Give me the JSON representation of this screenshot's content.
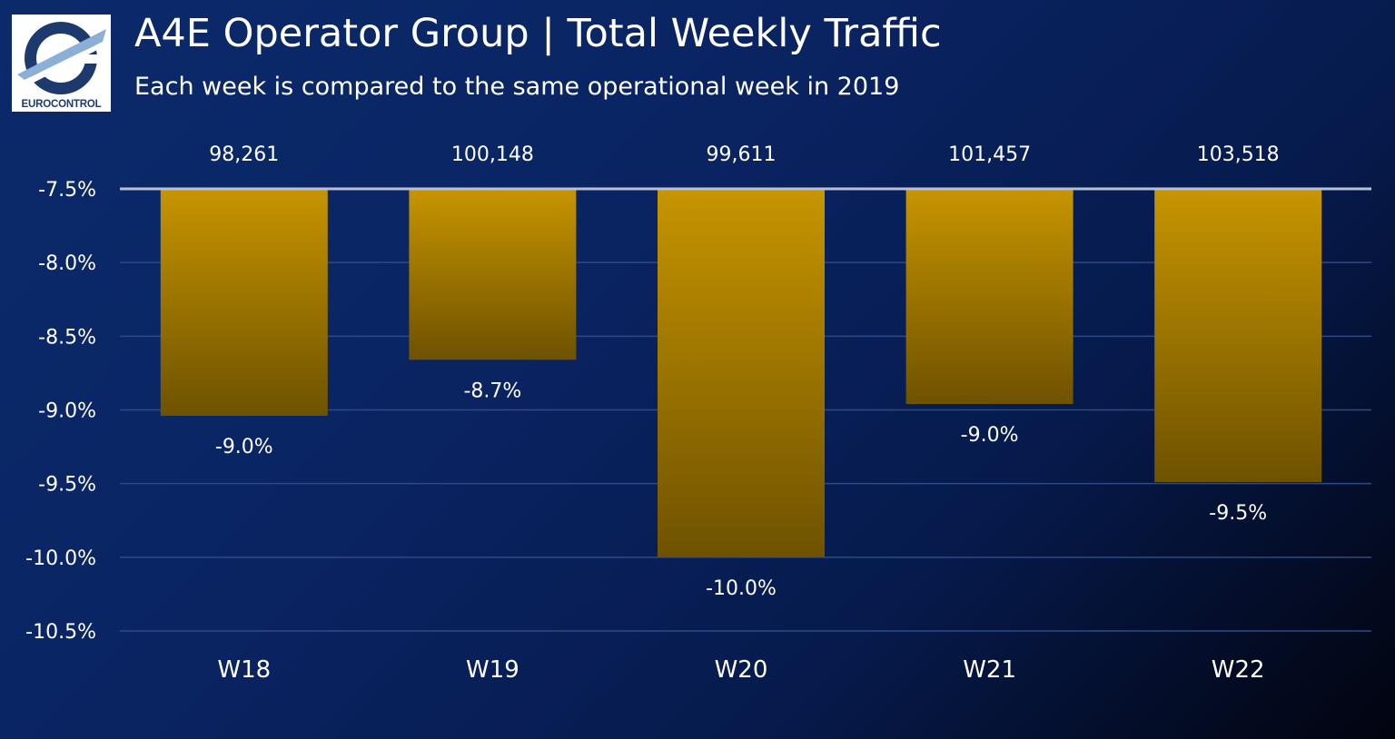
{
  "logo": {
    "text": "EUROCONTROL",
    "icon": "eurocontrol-logo-icon"
  },
  "header": {
    "title": "A4E Operator Group | Total Weekly Traffic",
    "subtitle": "Each week is compared to the same operational week in 2019"
  },
  "colors": {
    "background_top": "#0b2a6b",
    "background_bottom": "#02040f",
    "bar_top": "#c79500",
    "bar_bottom": "#6e5200",
    "gridline": "#2e4a86",
    "baseline": "#b7c0d4"
  },
  "chart_data": {
    "type": "bar",
    "categories": [
      "W18",
      "W19",
      "W20",
      "W21",
      "W22"
    ],
    "values": [
      -9.04,
      -8.66,
      -10.0,
      -8.96,
      -9.49
    ],
    "data_labels": [
      "-9.0%",
      "-8.7%",
      "-10.0%",
      "-9.0%",
      "-9.5%"
    ],
    "top_labels": [
      "98,261",
      "100,148",
      "99,611",
      "101,457",
      "103,518"
    ],
    "yticks": [
      -7.5,
      -8.0,
      -8.5,
      -9.0,
      -9.5,
      -10.0,
      -10.5
    ],
    "ytick_labels": [
      "-7.5%",
      "-8.0%",
      "-8.5%",
      "-9.0%",
      "-9.5%",
      "-10.0%",
      "-10.5%"
    ],
    "ylim": [
      -10.5,
      -7.5
    ],
    "bar_base": -7.5,
    "grid": true,
    "xlabel": "",
    "ylabel": ""
  }
}
